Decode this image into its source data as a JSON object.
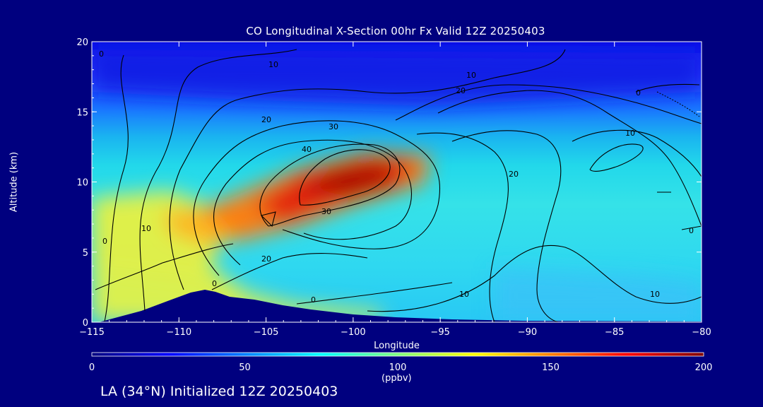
{
  "chart_data": {
    "type": "heatmap",
    "title": "CO Longitudinal X-Section 00hr  Fx Valid 12Z 20250403",
    "xlabel": "Longitude",
    "ylabel": "Altitude (km)",
    "xlim": [
      -115,
      -80
    ],
    "ylim": [
      0,
      20
    ],
    "x_ticks": [
      "−115",
      "−110",
      "−105",
      "−100",
      "−95",
      "−90",
      "−85",
      "−80"
    ],
    "y_ticks": [
      "0",
      "5",
      "10",
      "15",
      "20"
    ],
    "colorbar": {
      "label": "(ppbv)",
      "range": [
        0,
        200
      ],
      "ticks": [
        "0",
        "50",
        "100",
        "150",
        "200"
      ],
      "colors": [
        "#00007f",
        "#0000ff",
        "#0080ff",
        "#00ffff",
        "#80ff80",
        "#ffff00",
        "#ff8000",
        "#ff0000",
        "#7f0000"
      ]
    },
    "contour_labels": [
      "0",
      "10",
      "20",
      "30",
      "40"
    ],
    "co_max_region": {
      "lon": -100,
      "alt_km": 10.5,
      "value_ppbv": 190
    }
  },
  "footer": "LA (34°N) Initialized 12Z 20250403"
}
